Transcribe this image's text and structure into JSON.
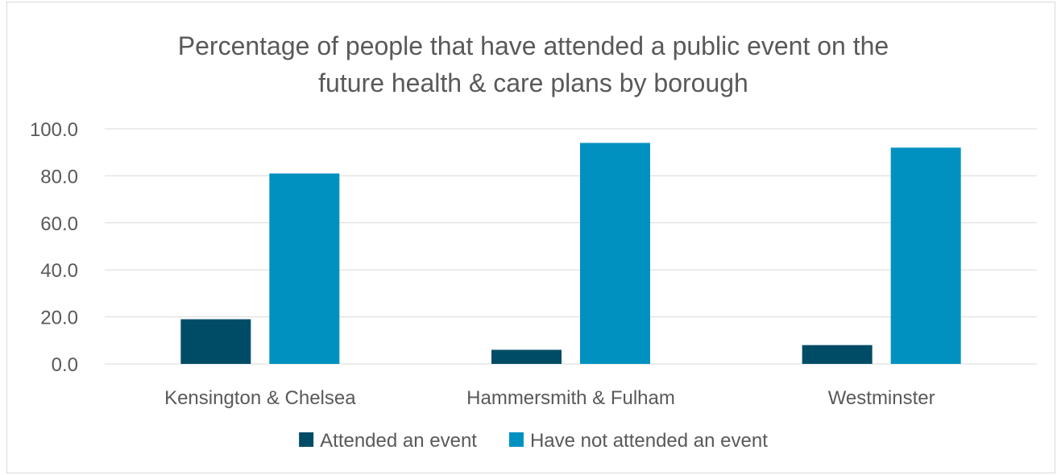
{
  "chart_data": {
    "type": "bar",
    "title": "Percentage of people that have attended a public event on the future health & care plans by borough",
    "title_lines": [
      "Percentage of people that have attended a public event on the",
      "future health & care plans by borough"
    ],
    "categories": [
      "Kensington & Chelsea",
      "Hammersmith & Fulham",
      "Westminster"
    ],
    "series": [
      {
        "name": "Attended an event",
        "color": "#004c66",
        "values": [
          19.0,
          6.0,
          8.0
        ]
      },
      {
        "name": "Have not attended an event",
        "color": "#0091c1",
        "values": [
          81.0,
          94.0,
          92.0
        ]
      }
    ],
    "ylim": [
      0,
      100
    ],
    "yticks": [
      "0.0",
      "20.0",
      "40.0",
      "60.0",
      "80.0",
      "100.0"
    ],
    "xlabel": "",
    "ylabel": "",
    "grid": true,
    "legend_position": "bottom",
    "gridline_color": "#d9d9d9",
    "text_color": "#595959"
  }
}
